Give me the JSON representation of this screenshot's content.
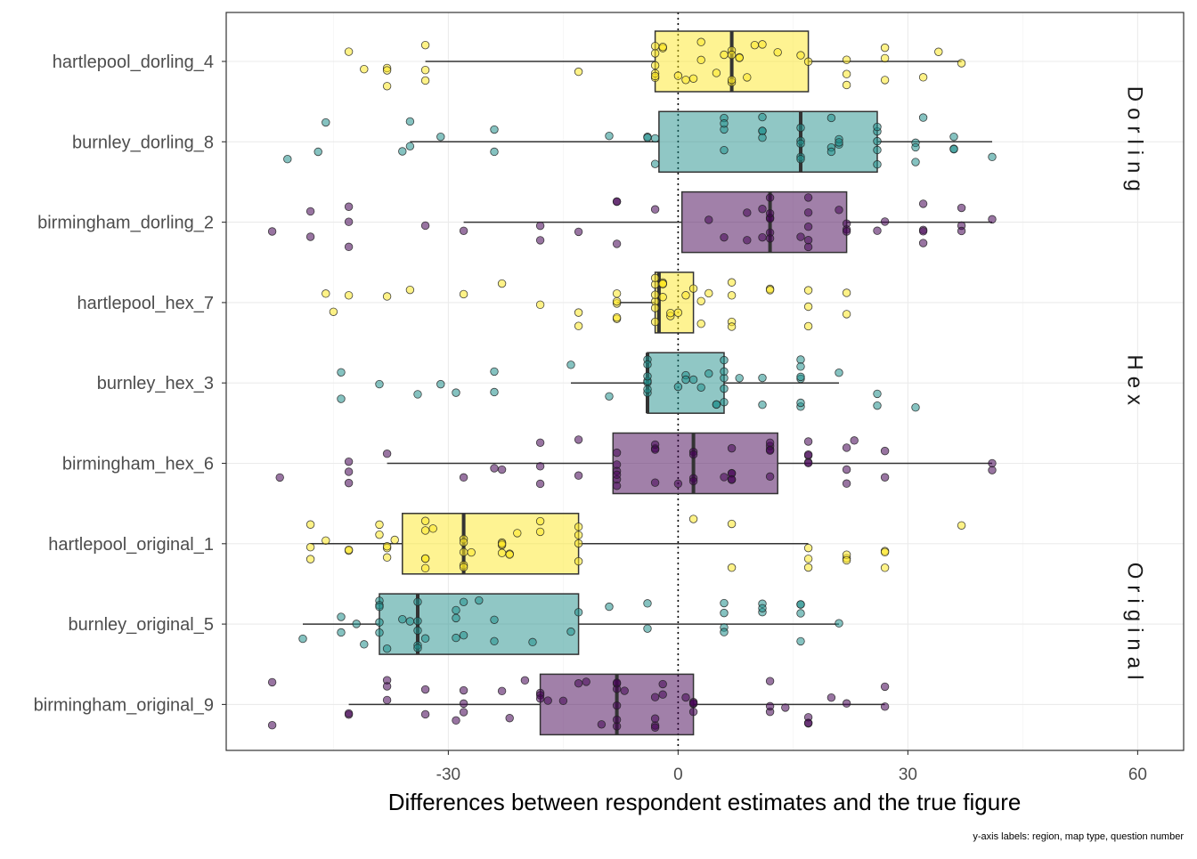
{
  "chart_data": {
    "type": "boxplot",
    "xlabel": "Differences between respondent estimates and the true figure",
    "caption": "y-axis labels: region, map type, question number",
    "xlim": [
      -59,
      66
    ],
    "xticks": [
      -30,
      0,
      30,
      60
    ],
    "reference_line_x": 0,
    "colors": {
      "birmingham": "#440154",
      "burnley": "#21908C",
      "hartlepool": "#FDE725"
    },
    "facets": [
      {
        "label": "Dorling",
        "rows": [
          "hartlepool_dorling_4",
          "burnley_dorling_8",
          "birmingham_dorling_2"
        ]
      },
      {
        "label": "Hex",
        "rows": [
          "hartlepool_hex_7",
          "burnley_hex_3",
          "birmingham_hex_6"
        ]
      },
      {
        "label": "Original",
        "rows": [
          "hartlepool_original_1",
          "burnley_original_5",
          "birmingham_original_9"
        ]
      }
    ],
    "categories": [
      "hartlepool_dorling_4",
      "burnley_dorling_8",
      "birmingham_dorling_2",
      "hartlepool_hex_7",
      "burnley_hex_3",
      "birmingham_hex_6",
      "hartlepool_original_1",
      "burnley_original_5",
      "birmingham_original_9"
    ],
    "boxes": [
      {
        "label": "hartlepool_dorling_4",
        "region": "hartlepool",
        "whisker_low": -33,
        "q1": -3,
        "median": 7,
        "q3": 17,
        "whisker_high": 37,
        "points": [
          -41,
          -43,
          -38,
          -38,
          -38,
          -33,
          -33,
          -33,
          -13,
          -3,
          -3,
          -3,
          -3,
          -3,
          -3,
          -2,
          -2,
          0,
          1,
          2,
          3,
          3,
          5,
          6,
          7,
          7,
          7,
          7,
          8,
          8,
          9,
          10,
          11,
          13,
          16,
          17,
          22,
          22,
          22,
          27,
          27,
          27,
          32,
          34,
          37
        ]
      },
      {
        "label": "burnley_dorling_8",
        "region": "burnley",
        "whisker_low": -35,
        "q1": -2.5,
        "median": 16,
        "q3": 26,
        "whisker_high": 41,
        "points": [
          -51,
          -47,
          -46,
          -35,
          -35,
          -36,
          -31,
          -24,
          -24,
          -9,
          -4,
          -4,
          -3,
          -3,
          6,
          6,
          6,
          6,
          11,
          11,
          11,
          11,
          16,
          16,
          16,
          16,
          16,
          20,
          20,
          20,
          21,
          21,
          21,
          26,
          26,
          26,
          26,
          26,
          31,
          31,
          31,
          32,
          36,
          36,
          36,
          41
        ]
      },
      {
        "label": "birmingham_dorling_2",
        "region": "birmingham",
        "whisker_low": -28,
        "q1": 0.5,
        "median": 12,
        "q3": 22,
        "whisker_high": 41,
        "points": [
          -53,
          -48,
          -48,
          -43,
          -43,
          -43,
          -33,
          -28,
          -18,
          -18,
          -13,
          -8,
          -8,
          -8,
          -3,
          4,
          6,
          9,
          9,
          11,
          11,
          12,
          12,
          12,
          12,
          12,
          12,
          16,
          17,
          17,
          17,
          17,
          17,
          21,
          22,
          22,
          22,
          26,
          27,
          32,
          32,
          32,
          32,
          37,
          37,
          37,
          41
        ]
      },
      {
        "label": "hartlepool_hex_7",
        "region": "hartlepool",
        "whisker_low": -8,
        "q1": -3,
        "median": -2.5,
        "q3": 2,
        "whisker_high": 2,
        "points": [
          -46,
          -45,
          -43,
          -38,
          -35,
          -28,
          -23,
          -18,
          -13,
          -13,
          -8,
          -8,
          -8,
          -8,
          -8,
          -3,
          -3,
          -3,
          -3,
          -3,
          -3,
          -2,
          -2,
          -2,
          -2,
          -2,
          -1,
          -1,
          0,
          1,
          2,
          3,
          3,
          4,
          7,
          7,
          7,
          7,
          12,
          12,
          17,
          17,
          17,
          22,
          22
        ]
      },
      {
        "label": "burnley_hex_3",
        "region": "burnley",
        "whisker_low": -14,
        "q1": -4,
        "median": -4,
        "q3": 6,
        "whisker_high": 21,
        "points": [
          -44,
          -44,
          -39,
          -34,
          -31,
          -29,
          -24,
          -24,
          -14,
          -9,
          -4,
          -4,
          -4,
          -4,
          -4,
          -4,
          -4,
          0,
          1,
          1,
          2,
          3,
          4,
          5,
          5,
          6,
          6,
          6,
          6,
          6,
          8,
          11,
          11,
          16,
          16,
          16,
          16,
          16,
          16,
          21,
          26,
          26,
          31
        ]
      },
      {
        "label": "birmingham_hex_6",
        "region": "birmingham",
        "whisker_low": -38,
        "q1": -8.5,
        "median": 2,
        "q3": 13,
        "whisker_high": 41,
        "points": [
          -52,
          -43,
          -43,
          -43,
          -38,
          -28,
          -24,
          -23,
          -18,
          -18,
          -18,
          -13,
          -13,
          -8,
          -8,
          -8,
          -8,
          -8,
          -8,
          -3,
          -3,
          -3,
          -3,
          0,
          2,
          2,
          2,
          2,
          6,
          7,
          7,
          7,
          7,
          7,
          12,
          12,
          12,
          12,
          12,
          17,
          17,
          17,
          17,
          17,
          22,
          22,
          22,
          23,
          27,
          27,
          41,
          41
        ]
      },
      {
        "label": "hartlepool_original_1",
        "region": "hartlepool",
        "whisker_low": -48,
        "q1": -36,
        "median": -28,
        "q3": -13,
        "whisker_high": 17,
        "points": [
          -48,
          -48,
          -48,
          -46,
          -43,
          -43,
          -39,
          -39,
          -38,
          -38,
          -38,
          -37,
          -33,
          -33,
          -33,
          -33,
          -33,
          -32,
          -28,
          -28,
          -28,
          -28,
          -28,
          -27,
          -23,
          -23,
          -23,
          -23,
          -22,
          -22,
          -21,
          -18,
          -18,
          -13,
          -13,
          -13,
          -13,
          2,
          7,
          7,
          17,
          17,
          17,
          22,
          22,
          22,
          27,
          27,
          27,
          37
        ]
      },
      {
        "label": "burnley_original_5",
        "region": "burnley",
        "whisker_low": -49,
        "q1": -39,
        "median": -34,
        "q3": -13,
        "whisker_high": 21,
        "points": [
          -49,
          -44,
          -44,
          -42,
          -41,
          -39,
          -39,
          -39,
          -39,
          -39,
          -38,
          -36,
          -35,
          -34,
          -34,
          -34,
          -34,
          -34,
          -33,
          -29,
          -29,
          -29,
          -28,
          -28,
          -26,
          -24,
          -24,
          -19,
          -14,
          -13,
          -9,
          -4,
          -4,
          6,
          6,
          6,
          6,
          11,
          11,
          11,
          16,
          16,
          16,
          16,
          21
        ]
      },
      {
        "label": "birmingham_original_9",
        "region": "birmingham",
        "whisker_low": -43,
        "q1": -18,
        "median": -8,
        "q3": 2,
        "whisker_high": 27,
        "points": [
          -53,
          -53,
          -43,
          -43,
          -38,
          -38,
          -38,
          -33,
          -33,
          -29,
          -28,
          -28,
          -28,
          -23,
          -22,
          -20,
          -18,
          -18,
          -18,
          -17,
          -15,
          -13,
          -12,
          -10,
          -8,
          -8,
          -8,
          -8,
          -8,
          -8,
          -7,
          -3,
          -3,
          -3,
          -3,
          -2,
          -2,
          1,
          2,
          2,
          2,
          2,
          12,
          12,
          12,
          14,
          17,
          17,
          17,
          20,
          22,
          27,
          27
        ]
      }
    ]
  }
}
